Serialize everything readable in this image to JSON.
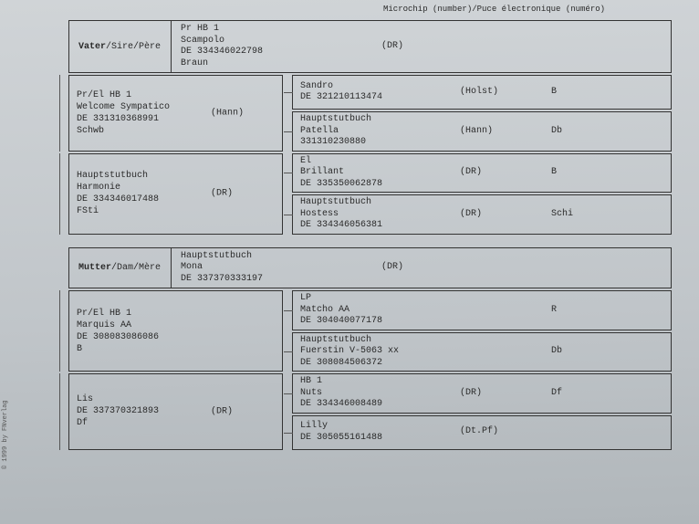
{
  "header": {
    "microchip_label": "Microchip (number)/Puce électronique (numéro)"
  },
  "copyright": "© 1999 by FNverlag",
  "sire": {
    "label_de": "Vater",
    "label_en": "/Sire/Père",
    "book": "Pr HB 1",
    "name": "Scampolo",
    "id": "DE 334346022798",
    "color": "Braun",
    "reg": "(DR)",
    "grandparents": [
      {
        "book": "Pr/El HB 1",
        "name": "Welcome Sympatico",
        "id": "DE 331310368991",
        "color": "Schwb",
        "reg": "(Hann)",
        "ancestors": [
          {
            "name": "Sandro",
            "id": "DE 321210113474",
            "reg": "(Holst)",
            "code": "B"
          },
          {
            "book": "Hauptstutbuch",
            "name": "Patella",
            "id": "331310230880",
            "reg": "(Hann)",
            "code": "Db"
          }
        ]
      },
      {
        "book": "Hauptstutbuch",
        "name": "Harmonie",
        "id": "DE 334346017488",
        "color": "FSti",
        "reg": "(DR)",
        "ancestors": [
          {
            "book": "El",
            "name": "Brillant",
            "id": "DE 335350062878",
            "reg": "(DR)",
            "code": "B"
          },
          {
            "book": "Hauptstutbuch",
            "name": "Hostess",
            "id": "DE 334346056381",
            "reg": "(DR)",
            "code": "Schi"
          }
        ]
      }
    ]
  },
  "dam": {
    "label_de": "Mutter",
    "label_en": "/Dam/Mère",
    "book": "Hauptstutbuch",
    "name": "Mona",
    "id": "DE 337370333197",
    "reg": "(DR)",
    "grandparents": [
      {
        "book": "Pr/El HB 1",
        "name": "Marquis AA",
        "id": "DE 308083086086",
        "color": "B",
        "reg": "",
        "ancestors": [
          {
            "book": "LP",
            "name": "Matcho AA",
            "id": "DE 304040077178",
            "reg": "",
            "code": "R"
          },
          {
            "book": "Hauptstutbuch",
            "name": "Fuerstin V-5063 xx",
            "id": "DE 308084506372",
            "reg": "",
            "code": "Db"
          }
        ]
      },
      {
        "book": "",
        "name": "Lis",
        "id": "DE 337370321893",
        "color": "Df",
        "reg": "(DR)",
        "ancestors": [
          {
            "book": "HB 1",
            "name": "Nuts",
            "id": "DE 334346008489",
            "reg": "(DR)",
            "code": "Df"
          },
          {
            "name": "Lilly",
            "id": "DE 305055161488",
            "reg": "(Dt.Pf)",
            "code": ""
          }
        ]
      }
    ]
  }
}
